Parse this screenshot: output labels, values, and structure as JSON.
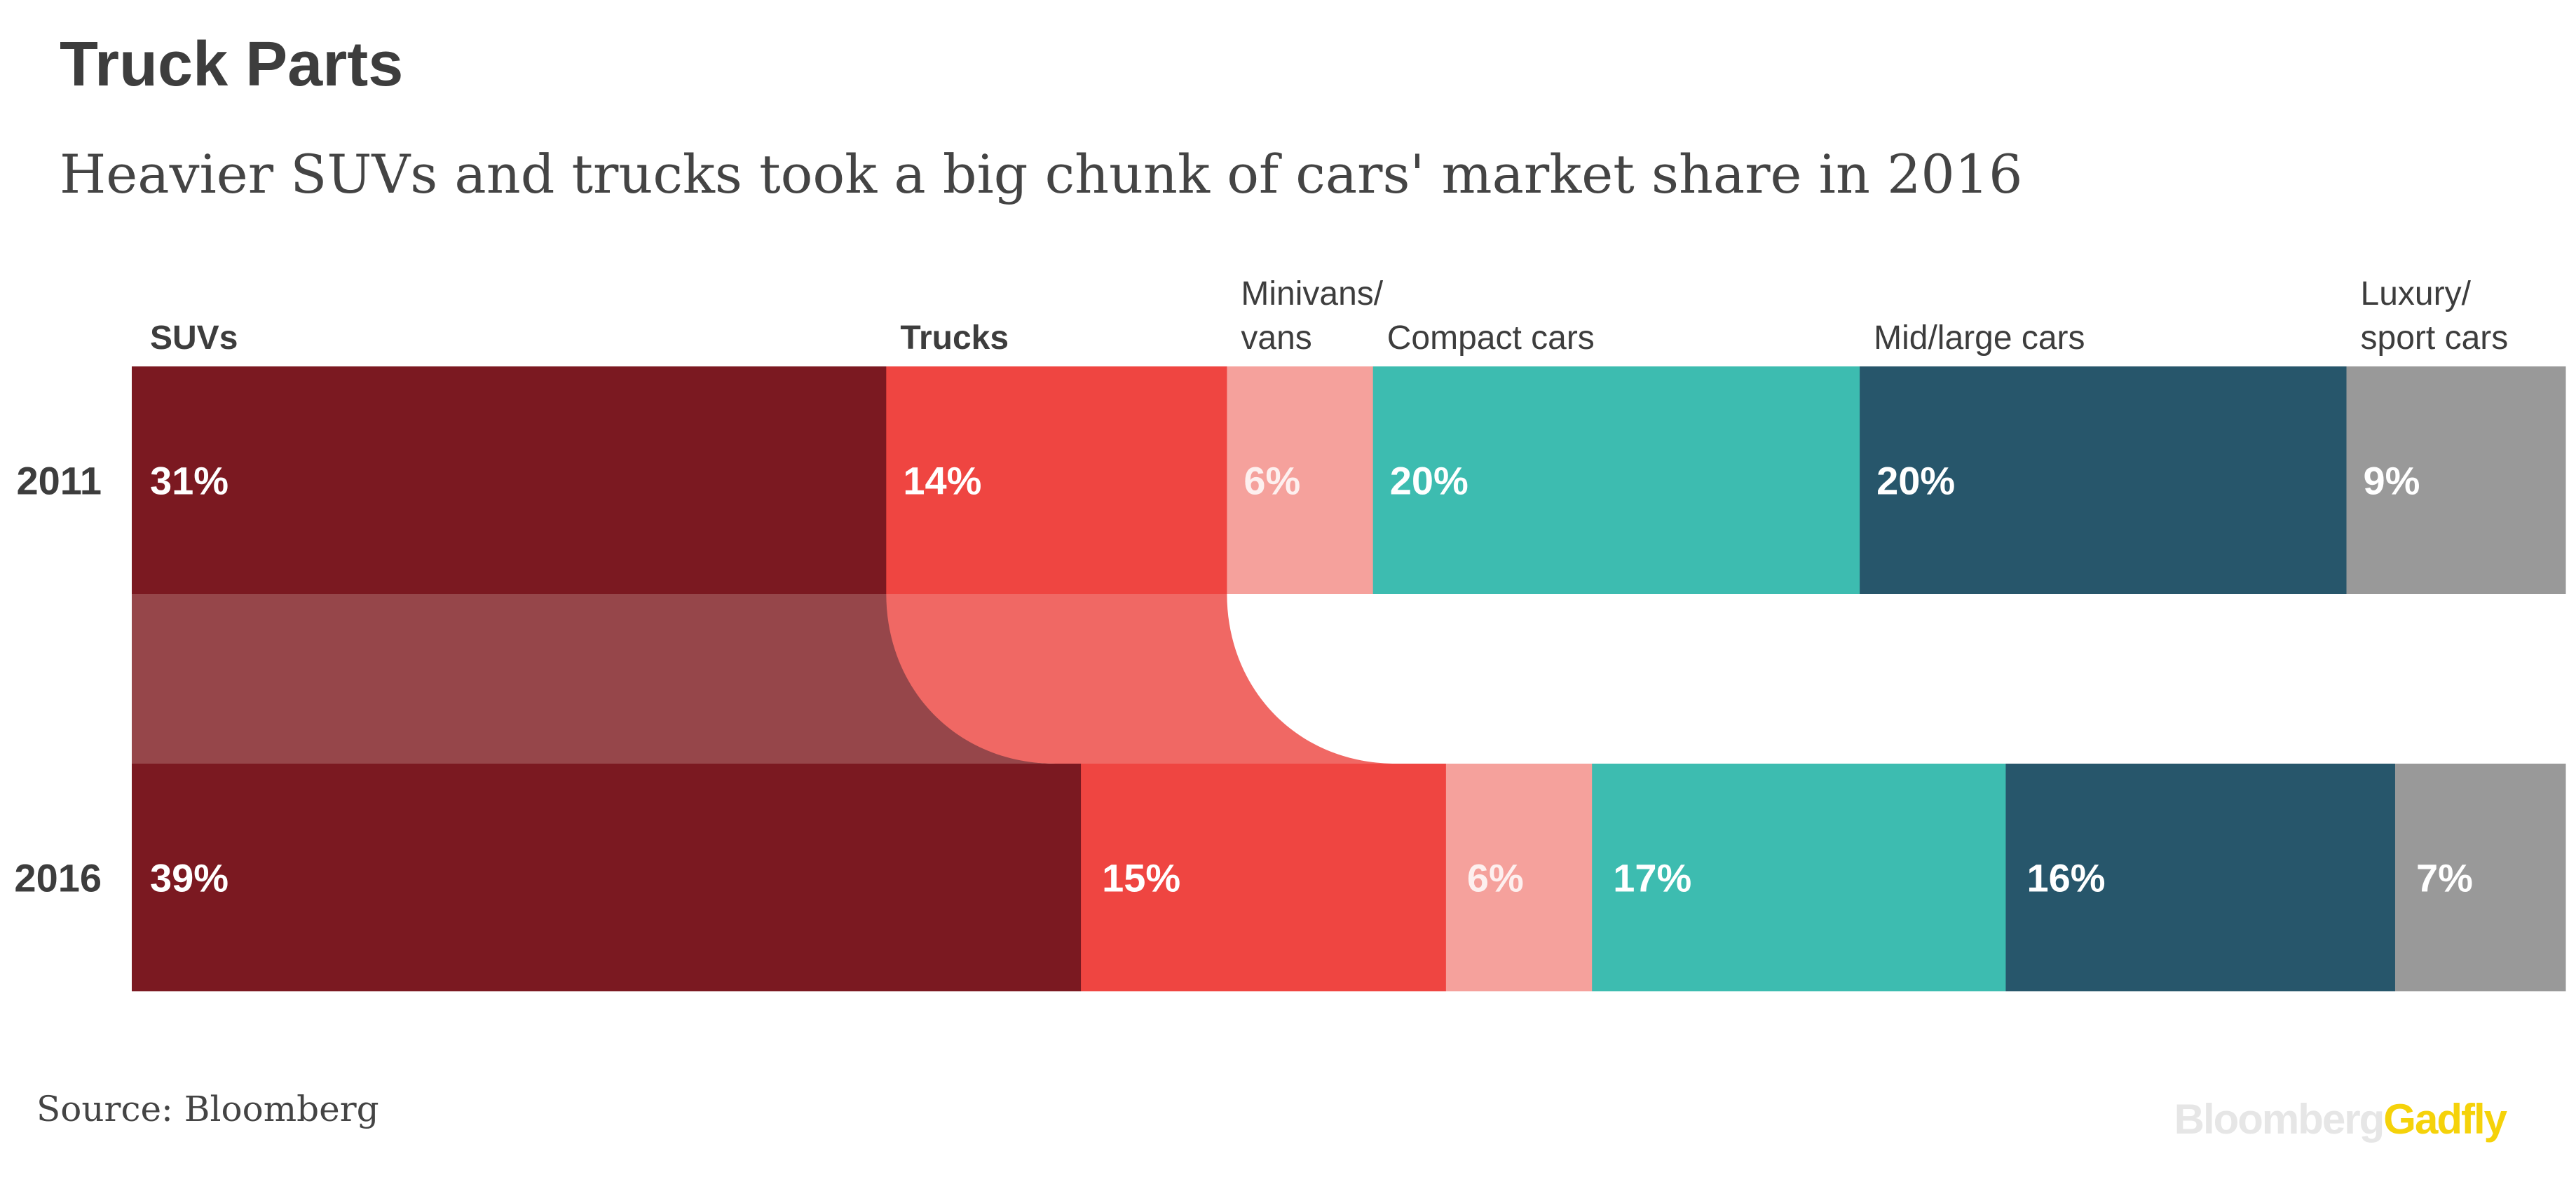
{
  "title": "Truck Parts",
  "subtitle": "Heavier SUVs and trucks took a big chunk of cars' market share in 2016",
  "source": "Source: Bloomberg",
  "brand": {
    "part1": "Bloomberg",
    "part2": "Gadfly",
    "color1": "#e6e6e6",
    "color2": "#f5d20a"
  },
  "chart_data": {
    "type": "bar",
    "orientation": "horizontal-stacked-100",
    "categories": [
      "2011",
      "2016"
    ],
    "series": [
      {
        "name": "SUVs",
        "label_lines": [
          "SUVs"
        ],
        "bold": true,
        "color": "#7b1921",
        "values": [
          31,
          39
        ],
        "labels": [
          "31%",
          "39%"
        ]
      },
      {
        "name": "Trucks",
        "label_lines": [
          "Trucks"
        ],
        "bold": true,
        "color": "#ef4541",
        "values": [
          14,
          15
        ],
        "labels": [
          "14%",
          "15%"
        ]
      },
      {
        "name": "Minivans/vans",
        "label_lines": [
          "Minivans/",
          "vans"
        ],
        "bold": false,
        "color": "#f5a19c",
        "values": [
          6,
          6
        ],
        "labels": [
          "6%",
          "6%"
        ]
      },
      {
        "name": "Compact cars",
        "label_lines": [
          "Compact cars"
        ],
        "bold": false,
        "color": "#3dbcb0",
        "values": [
          20,
          17
        ],
        "labels": [
          "20%",
          "17%"
        ]
      },
      {
        "name": "Mid/large cars",
        "label_lines": [
          "Mid/large cars"
        ],
        "bold": false,
        "color": "#27566b",
        "values": [
          20,
          16
        ],
        "labels": [
          "20%",
          "16%"
        ]
      },
      {
        "name": "Luxury/sport cars",
        "label_lines": [
          "Luxury/",
          "sport cars"
        ],
        "bold": false,
        "color": "#999999",
        "values": [
          9,
          7
        ],
        "labels": [
          "9%",
          "7%"
        ]
      }
    ],
    "connector": {
      "from": "2011",
      "to": "2016",
      "series_highlighted": [
        "SUVs",
        "Trucks"
      ],
      "colors": [
        "#96464a",
        "#f06864"
      ]
    },
    "xlim": [
      0,
      100
    ]
  }
}
